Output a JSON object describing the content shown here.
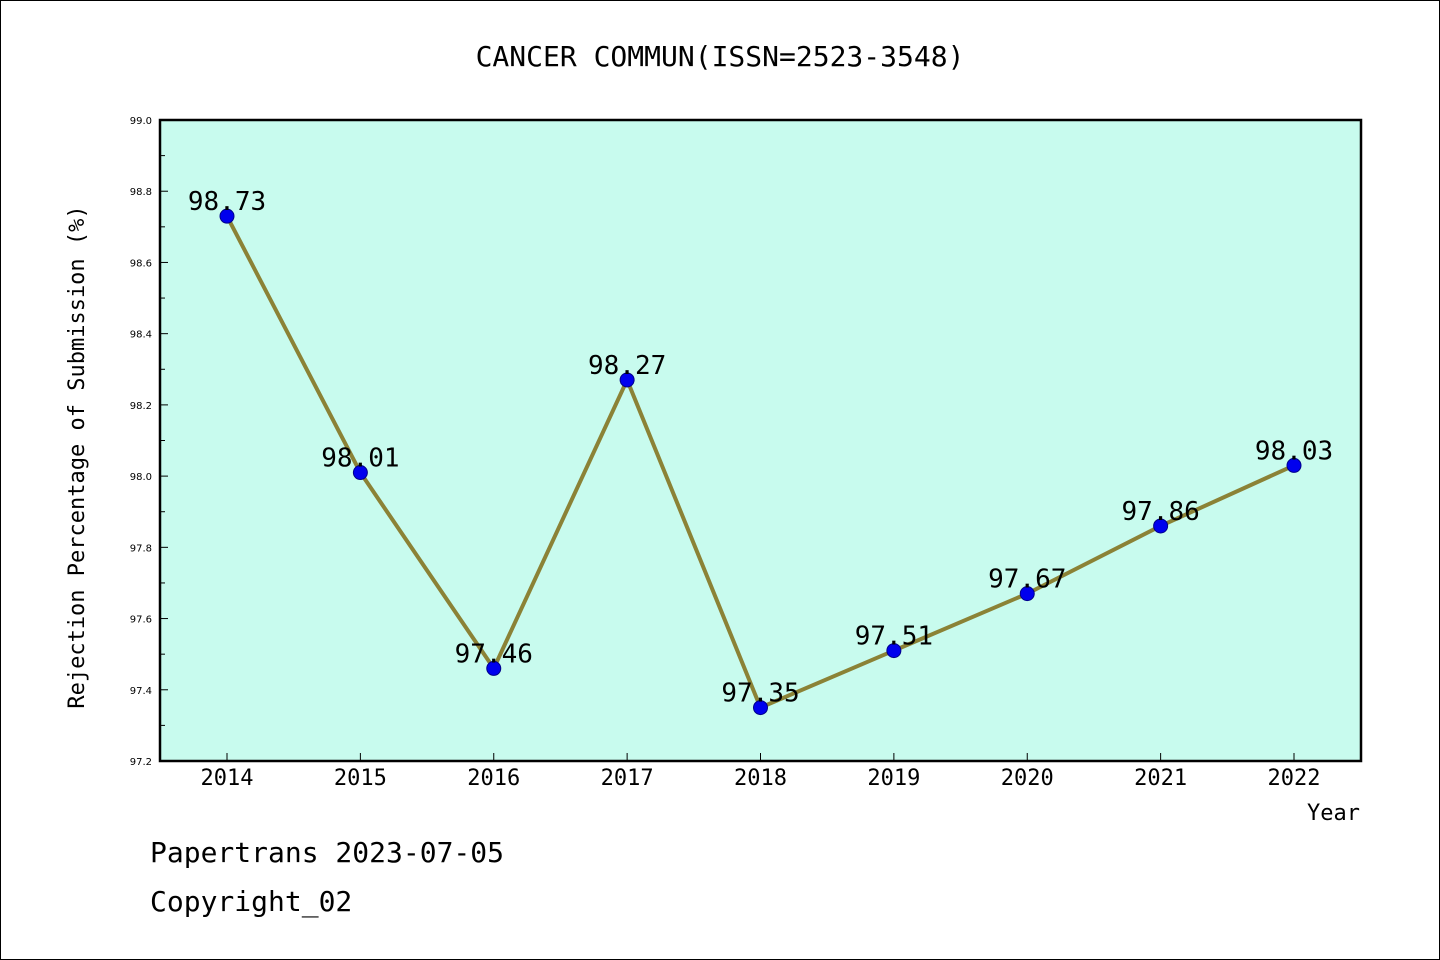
{
  "chart_data": {
    "type": "line",
    "title": "CANCER COMMUN(ISSN=2523-3548)",
    "xlabel": "Year",
    "ylabel": "Rejection Percentage of Submission (%)",
    "categories": [
      "2014",
      "2015",
      "2016",
      "2017",
      "2018",
      "2019",
      "2020",
      "2021",
      "2022"
    ],
    "values": [
      98.73,
      98.01,
      97.46,
      98.27,
      97.35,
      97.51,
      97.67,
      97.86,
      98.03
    ],
    "data_labels": [
      "98.73",
      "98.01",
      "97.46",
      "98.27",
      "97.35",
      "97.51",
      "97.67",
      "97.86",
      "98.03"
    ],
    "ylim": [
      97.2,
      99.0
    ],
    "yticks": [
      "97.2",
      "97.4",
      "97.6",
      "97.8",
      "98.0",
      "98.2",
      "98.4",
      "98.6",
      "98.8",
      "99.0"
    ],
    "grid": false,
    "colors": {
      "plot_background": "#c8fbee",
      "line": "#8b8236",
      "marker": "#0000ee",
      "axis": "#000000"
    }
  },
  "footer": {
    "line1": "Papertrans 2023-07-05",
    "line2": "Copyright_02"
  }
}
